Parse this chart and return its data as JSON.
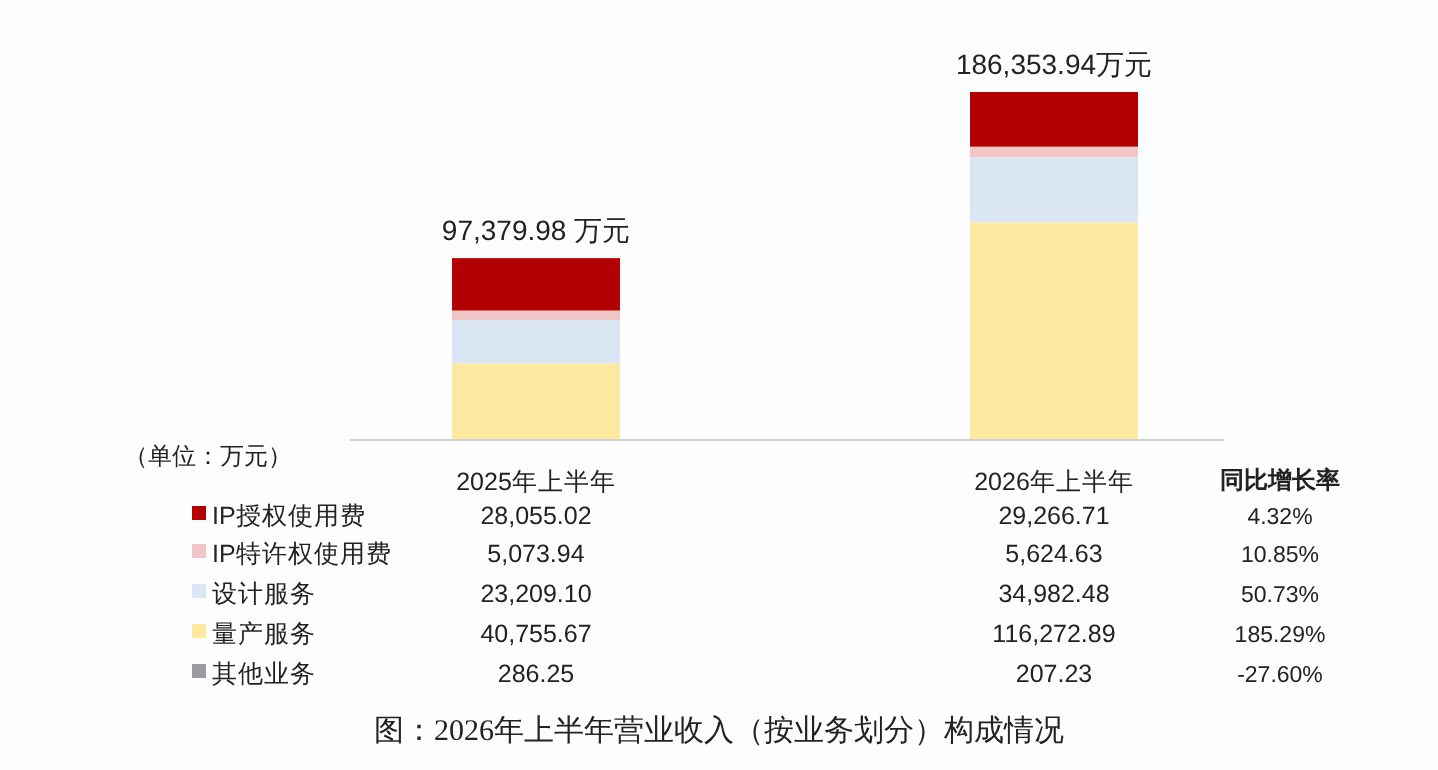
{
  "chart_data": {
    "type": "bar",
    "title": "图：2026年上半年营业收入（按业务划分）构成情况",
    "ylabel": "（单位：万元）",
    "categories": [
      "2025年上半年",
      "2026年上半年"
    ],
    "stacked": true,
    "legend": "bottom",
    "series": [
      {
        "name": "其他业务",
        "color": "#9b9aa3",
        "values": [
          286.25,
          207.23
        ],
        "value_labels": [
          "286.25",
          "207.23"
        ]
      },
      {
        "name": "量产服务",
        "color": "#fde9a0",
        "values": [
          40755.67,
          116272.89
        ],
        "value_labels": [
          "40,755.67",
          "116,272.89"
        ]
      },
      {
        "name": "设计服务",
        "color": "#dbe6f4",
        "values": [
          23209.1,
          34982.48
        ],
        "value_labels": [
          "23,209.10",
          "34,982.48"
        ]
      },
      {
        "name": "IP特许权使用费",
        "color": "#f2c6c6",
        "values": [
          5073.94,
          5624.63
        ],
        "value_labels": [
          "5,073.94",
          "5,624.63"
        ]
      },
      {
        "name": "IP授权使用费",
        "color": "#b30000",
        "values": [
          28055.02,
          29266.71
        ],
        "value_labels": [
          "28,055.02",
          "29,266.71"
        ]
      }
    ],
    "totals": [
      "97,379.98 万元",
      "186,353.94万元"
    ],
    "annotations": [
      "同比增长率",
      "4.32%",
      "10.85%",
      "50.73%",
      "185.29%",
      "-27.60%"
    ]
  }
}
